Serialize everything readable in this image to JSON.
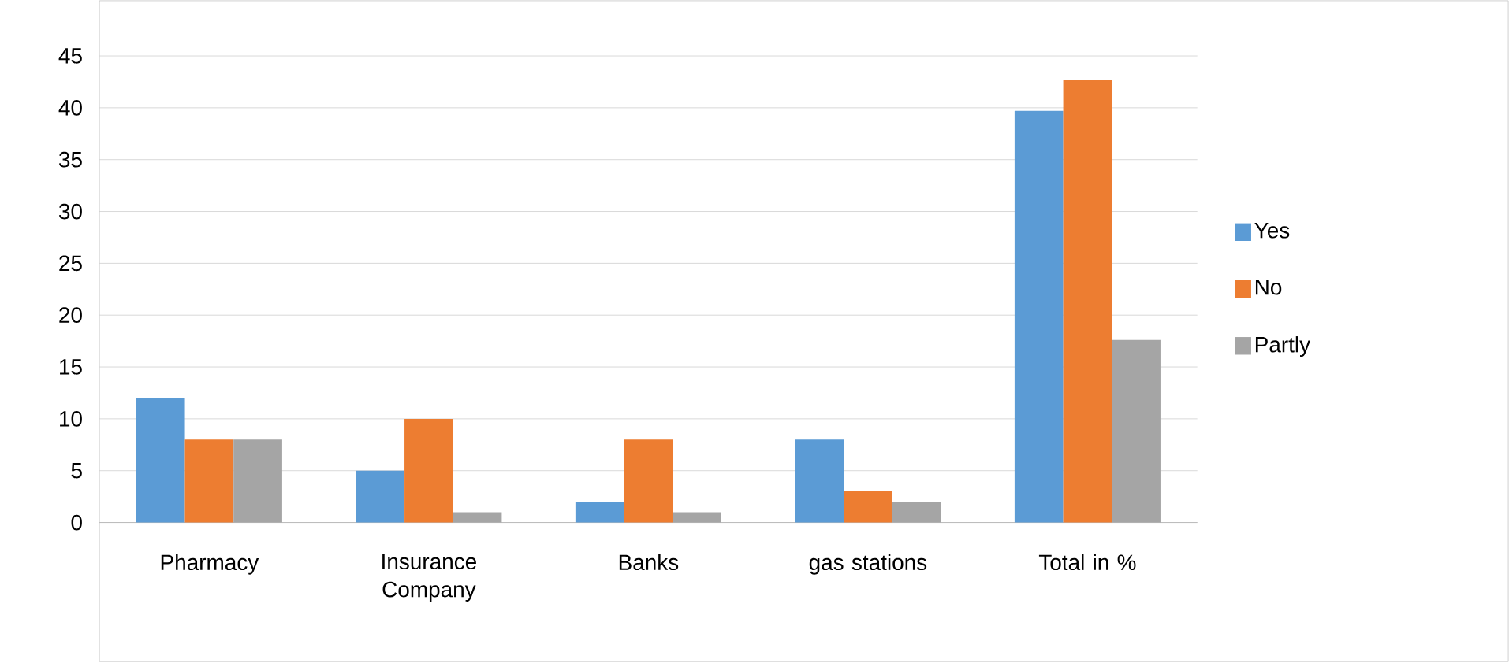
{
  "chart_data": {
    "type": "bar",
    "categories": [
      "Pharmacy",
      "Insurance Company",
      "Banks",
      "gas stations",
      "Total in %"
    ],
    "series": [
      {
        "name": "Yes",
        "color": "#5b9bd5",
        "values": [
          12,
          5,
          2,
          8,
          39.7
        ]
      },
      {
        "name": "No",
        "color": "#ed7d31",
        "values": [
          8,
          10,
          8,
          3,
          42.7
        ]
      },
      {
        "name": "Partly",
        "color": "#a5a5a5",
        "values": [
          8,
          1,
          1,
          2,
          17.6
        ]
      }
    ],
    "ylim": [
      0,
      45
    ],
    "yticks": [
      0,
      5,
      10,
      15,
      20,
      25,
      30,
      35,
      40,
      45
    ],
    "grid": "y",
    "legend": "right"
  }
}
